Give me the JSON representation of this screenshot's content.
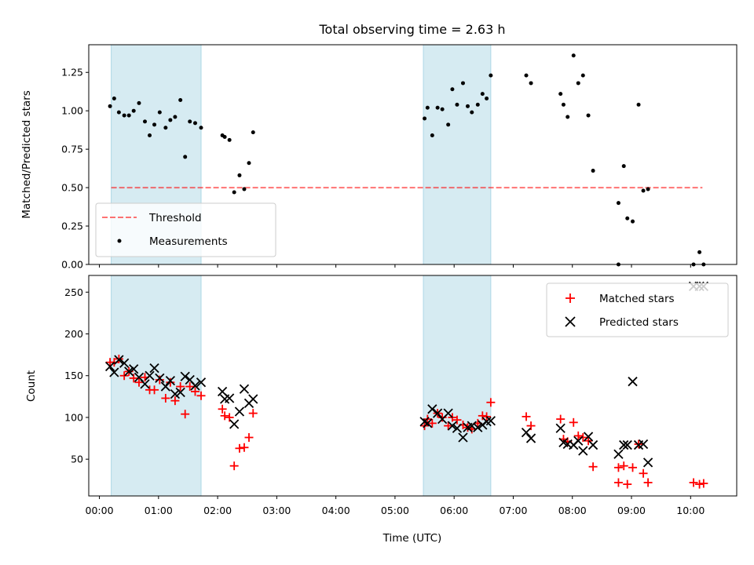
{
  "chart_data": {
    "type": "scatter",
    "title": "Total observing time = 2.63 h",
    "xlabel": "Time (UTC)",
    "x_ticks": [
      "00:00",
      "01:00",
      "02:00",
      "03:00",
      "04:00",
      "05:00",
      "06:00",
      "07:00",
      "08:00",
      "09:00",
      "10:00"
    ],
    "x_range_hours": [
      -0.18,
      10.78
    ],
    "shaded_intervals_hours": [
      [
        0.2,
        1.72
      ],
      [
        5.48,
        6.62
      ]
    ],
    "colors": {
      "shade": "#add8e6",
      "threshold": "#ff0000",
      "measurements": "#000000",
      "matched": "#ff0000",
      "predicted": "#000000"
    },
    "panels": [
      {
        "ylabel": "Matched/Predicted stars",
        "ylim": [
          0,
          1.43
        ],
        "y_ticks": [
          "0.00",
          "0.25",
          "0.50",
          "0.75",
          "1.00",
          "1.25"
        ],
        "y_tick_values": [
          0,
          0.25,
          0.5,
          0.75,
          1.0,
          1.25
        ],
        "legend_position": "lower-left",
        "threshold": {
          "name": "Threshold",
          "value": 0.5,
          "x_range_hours": [
            0.2,
            10.2
          ]
        },
        "measurements": {
          "name": "Measurements",
          "x": [
            0.18,
            0.25,
            0.33,
            0.42,
            0.5,
            0.58,
            0.67,
            0.77,
            0.85,
            0.93,
            1.02,
            1.12,
            1.2,
            1.28,
            1.37,
            1.45,
            1.53,
            1.62,
            1.72,
            2.08,
            2.12,
            2.2,
            2.28,
            2.37,
            2.45,
            2.53,
            2.6,
            5.5,
            5.55,
            5.63,
            5.72,
            5.8,
            5.9,
            5.97,
            6.05,
            6.15,
            6.23,
            6.3,
            6.4,
            6.48,
            6.55,
            6.62,
            7.22,
            7.3,
            7.8,
            7.85,
            7.92,
            8.02,
            8.1,
            8.18,
            8.27,
            8.35,
            8.78,
            8.87,
            8.93,
            9.02,
            9.12,
            9.2,
            9.28,
            10.05,
            10.15,
            10.22,
            8.78
          ],
          "y": [
            1.03,
            1.08,
            0.99,
            0.97,
            0.97,
            1.0,
            1.05,
            0.93,
            0.84,
            0.91,
            0.99,
            0.89,
            0.94,
            0.96,
            1.07,
            0.7,
            0.93,
            0.92,
            0.89,
            0.84,
            0.83,
            0.81,
            0.47,
            0.58,
            0.49,
            0.66,
            0.86,
            0.95,
            1.02,
            0.84,
            1.02,
            1.01,
            0.91,
            1.14,
            1.04,
            1.18,
            1.03,
            0.99,
            1.04,
            1.11,
            1.08,
            1.23,
            1.23,
            1.18,
            1.11,
            1.04,
            0.96,
            1.36,
            1.18,
            1.23,
            0.97,
            0.61,
            0.4,
            0.64,
            0.3,
            0.28,
            1.04,
            0.48,
            0.49,
            0.0,
            0.08,
            0.0,
            0.0
          ]
        }
      },
      {
        "ylabel": "Count",
        "ylim": [
          6,
          270
        ],
        "y_ticks": [
          "50",
          "100",
          "150",
          "200",
          "250"
        ],
        "y_tick_values": [
          50,
          100,
          150,
          200,
          250
        ],
        "legend_position": "upper-right",
        "series": [
          {
            "name": "Matched stars",
            "marker": "+",
            "x": [
              0.18,
              0.25,
              0.33,
              0.42,
              0.5,
              0.58,
              0.67,
              0.77,
              0.85,
              0.93,
              1.02,
              1.12,
              1.2,
              1.28,
              1.37,
              1.45,
              1.53,
              1.62,
              1.72,
              2.08,
              2.12,
              2.2,
              2.28,
              2.37,
              2.45,
              2.53,
              2.6,
              5.5,
              5.55,
              5.63,
              5.72,
              5.8,
              5.9,
              5.97,
              6.05,
              6.15,
              6.23,
              6.3,
              6.4,
              6.48,
              6.55,
              6.62,
              7.22,
              7.3,
              7.8,
              7.85,
              7.92,
              8.02,
              8.1,
              8.18,
              8.27,
              8.35,
              8.78,
              8.87,
              8.93,
              9.02,
              9.12,
              9.2,
              9.28,
              10.05,
              10.15,
              10.22,
              8.78
            ],
            "y": [
              166,
              166,
              170,
              150,
              155,
              147,
              142,
              148,
              133,
              133,
              145,
              123,
              142,
              120,
              137,
              104,
              137,
              131,
              126,
              110,
              102,
              100,
              42,
              63,
              64,
              76,
              105,
              90,
              98,
              93,
              105,
              100,
              90,
              100,
              97,
              91,
              88,
              86,
              93,
              102,
              101,
              118,
              101,
              90,
              98,
              74,
              71,
              94,
              78,
              76,
              72,
              41,
              40,
              42,
              20,
              40,
              68,
              33,
              22,
              22,
              20,
              21,
              22
            ]
          },
          {
            "name": "Predicted stars",
            "marker": "x",
            "x": [
              0.18,
              0.25,
              0.33,
              0.42,
              0.5,
              0.58,
              0.67,
              0.77,
              0.85,
              0.93,
              1.02,
              1.12,
              1.2,
              1.28,
              1.37,
              1.45,
              1.53,
              1.62,
              1.72,
              2.08,
              2.12,
              2.2,
              2.28,
              2.37,
              2.45,
              2.53,
              2.6,
              5.5,
              5.55,
              5.63,
              5.72,
              5.8,
              5.9,
              5.97,
              6.05,
              6.15,
              6.23,
              6.3,
              6.4,
              6.48,
              6.55,
              6.62,
              7.22,
              7.3,
              7.8,
              7.85,
              7.92,
              8.02,
              8.1,
              8.18,
              8.27,
              8.35,
              8.78,
              8.87,
              8.93,
              9.02,
              9.12,
              9.2,
              9.28,
              10.05,
              10.15,
              10.22
            ],
            "y": [
              161,
              154,
              169,
              165,
              155,
              158,
              148,
              140,
              150,
              159,
              147,
              137,
              144,
              128,
              130,
              149,
              145,
              138,
              142,
              131,
              122,
              123,
              92,
              107,
              134,
              117,
              122,
              95,
              93,
              110,
              105,
              98,
              105,
              90,
              87,
              76,
              88,
              90,
              88,
              91,
              95,
              96,
              82,
              75,
              87,
              70,
              68,
              67,
              72,
              60,
              77,
              67,
              56,
              67,
              67,
              143,
              67,
              68,
              46,
              257,
              257,
              257
            ]
          }
        ]
      }
    ]
  }
}
